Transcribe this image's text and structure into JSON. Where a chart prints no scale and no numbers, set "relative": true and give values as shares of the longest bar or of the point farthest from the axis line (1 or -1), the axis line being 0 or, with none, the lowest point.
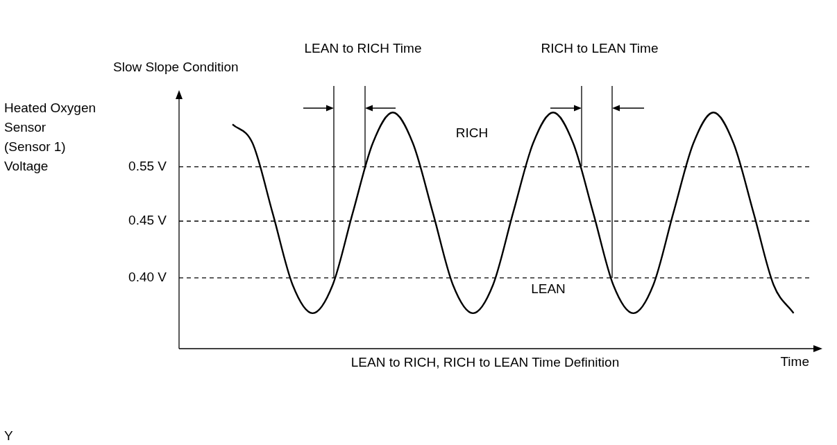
{
  "chart_data": {
    "type": "line",
    "relative": true,
    "xlabel": "Time",
    "categories": [
      null,
      null,
      null,
      null,
      null,
      null,
      null,
      null,
      null,
      null,
      null,
      null,
      null,
      null,
      null,
      null,
      null,
      null,
      null,
      null,
      null,
      null,
      null,
      null,
      null,
      null,
      null,
      null,
      null
    ],
    "values": [
      0.95,
      0.87,
      0.575,
      0.27,
      0.15,
      0.27,
      0.575,
      0.87,
      1,
      0.87,
      0.575,
      0.27,
      0.15,
      0.27,
      0.575,
      0.87,
      1,
      0.87,
      0.575,
      0.27,
      0.15,
      0.27,
      0.575,
      0.87,
      1,
      0.87,
      0.575,
      0.27,
      0.15
    ],
    "color": "#000000",
    "marker": "none",
    "line_style": "solid",
    "ref_lines": [
      {
        "axis": "y",
        "value": 0.77,
        "label": "0.55 V",
        "line_style": "dashed"
      },
      {
        "axis": "y",
        "value": 0.54,
        "label": "0.45 V",
        "line_style": "dashed"
      },
      {
        "axis": "y",
        "value": 0.3,
        "label": "0.40 V",
        "line_style": "dashed"
      }
    ],
    "annotations": [
      "Heated Oxygen\nSensor\n(Sensor 1)\nVoltage",
      "Slow Slope Condition",
      "LEAN to RICH Time",
      "RICH to LEAN Time",
      "RICH",
      "LEAN",
      "LEAN to RICH, RICH to LEAN Time Definition",
      "Y"
    ]
  }
}
